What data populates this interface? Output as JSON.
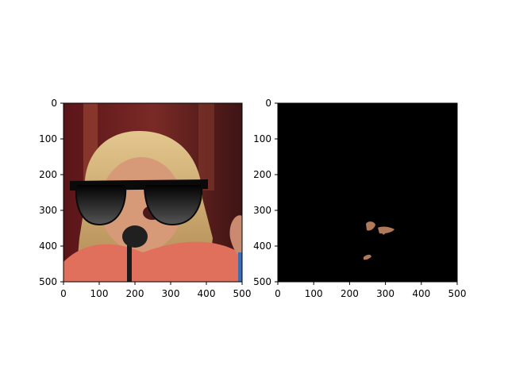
{
  "chart_data": [
    {
      "type": "image",
      "content": "photo of a blonde woman in a coral top singing into a microphone, with black sunglasses overlaid on her eyes",
      "xlim": [
        0,
        500
      ],
      "ylim": [
        500,
        0
      ],
      "xticks": [
        0,
        100,
        200,
        300,
        400,
        500
      ],
      "yticks": [
        0,
        100,
        200,
        300,
        400,
        500
      ],
      "xtick_labels": [
        "0",
        "100",
        "200",
        "300",
        "400",
        "500"
      ],
      "ytick_labels": [
        "0",
        "100",
        "200",
        "300",
        "400",
        "500"
      ],
      "grid": false
    },
    {
      "type": "image",
      "content": "mostly black mask image with a few small skin-coloured patches",
      "xlim": [
        0,
        500
      ],
      "ylim": [
        500,
        0
      ],
      "xticks": [
        0,
        100,
        200,
        300,
        400,
        500
      ],
      "yticks": [
        0,
        100,
        200,
        300,
        400,
        500
      ],
      "xtick_labels": [
        "0",
        "100",
        "200",
        "300",
        "400",
        "500"
      ],
      "ytick_labels": [
        "0",
        "100",
        "200",
        "300",
        "400",
        "500"
      ],
      "grid": false,
      "background_color": "#000000",
      "patch_color": "#b07a5a"
    }
  ]
}
